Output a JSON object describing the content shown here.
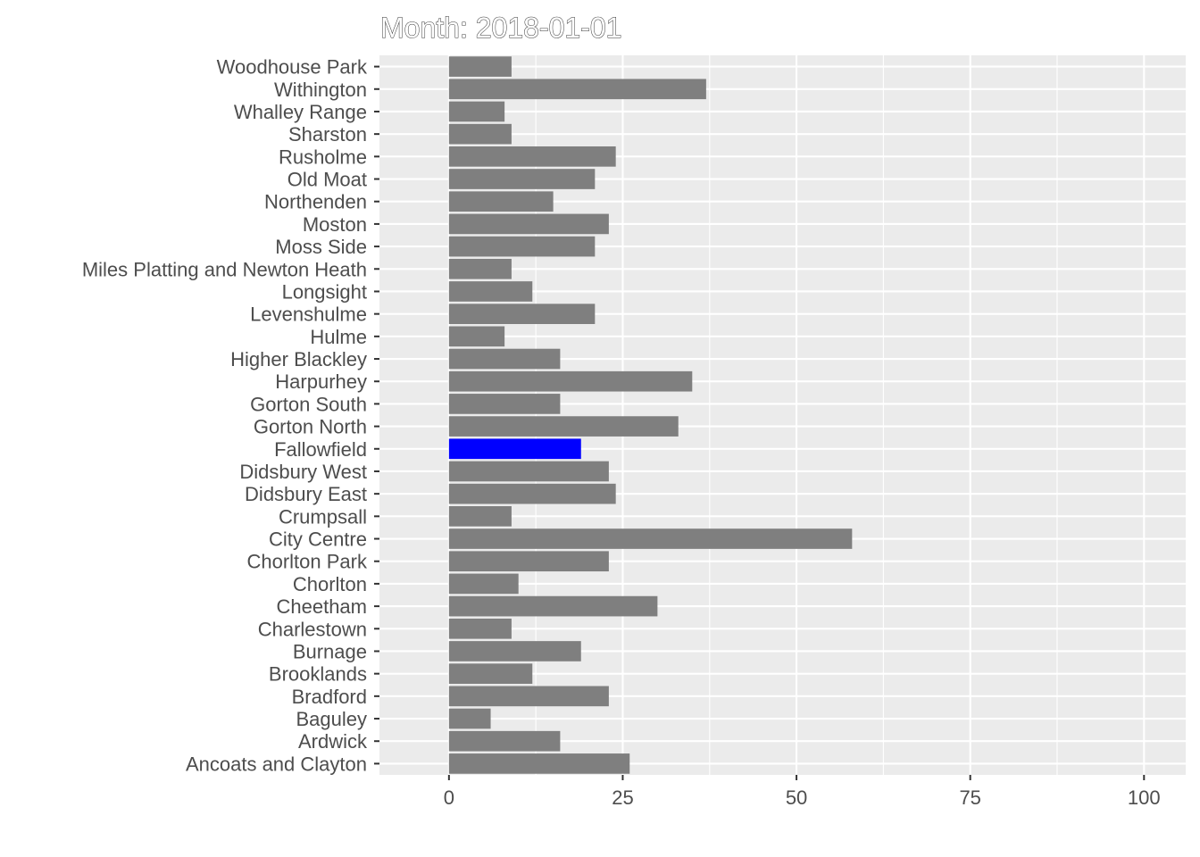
{
  "chart_data": {
    "type": "bar",
    "orientation": "horizontal",
    "title": "Month: 2018-01-01",
    "xlabel": "",
    "ylabel": "",
    "xlim": [
      -10,
      106
    ],
    "x_ticks": [
      0,
      25,
      50,
      75,
      100
    ],
    "grid": true,
    "legend": "none",
    "bar_color": "#7f7f7f",
    "highlight_color": "#0000ff",
    "highlight_category": "Fallowfield",
    "panel_color": "#ebebeb",
    "categories": [
      "Woodhouse Park",
      "Withington",
      "Whalley Range",
      "Sharston",
      "Rusholme",
      "Old Moat",
      "Northenden",
      "Moston",
      "Moss Side",
      "Miles Platting and Newton Heath",
      "Longsight",
      "Levenshulme",
      "Hulme",
      "Higher Blackley",
      "Harpurhey",
      "Gorton South",
      "Gorton North",
      "Fallowfield",
      "Didsbury West",
      "Didsbury East",
      "Crumpsall",
      "City Centre",
      "Chorlton Park",
      "Chorlton",
      "Cheetham",
      "Charlestown",
      "Burnage",
      "Brooklands",
      "Bradford",
      "Baguley",
      "Ardwick",
      "Ancoats and Clayton"
    ],
    "values": [
      9,
      37,
      8,
      9,
      24,
      21,
      15,
      23,
      21,
      9,
      12,
      21,
      8,
      16,
      35,
      16,
      33,
      19,
      23,
      24,
      9,
      58,
      23,
      10,
      30,
      9,
      19,
      12,
      23,
      6,
      16,
      26
    ]
  }
}
